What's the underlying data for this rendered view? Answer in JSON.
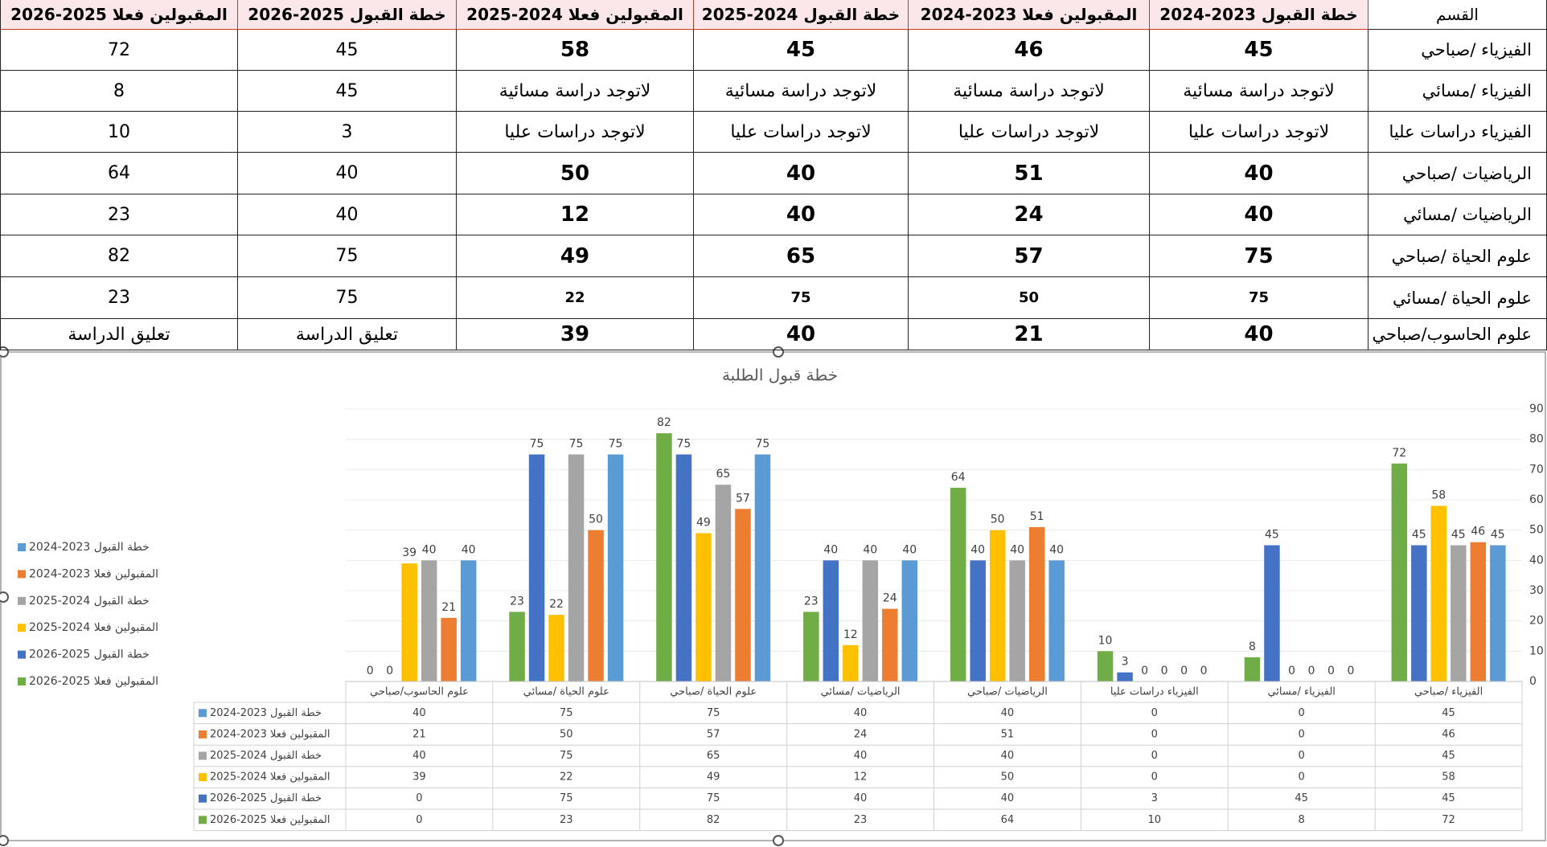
{
  "table": {
    "header": [
      "القسم",
      "خطة القبول 2023-2024",
      "المقبولين فعلا 2023-2024",
      "خطة القبول 2024-2025",
      "المقبولين فعلا 2024-2025",
      "خطة القبول 2025-2026",
      "المقبولين فعلا 2025-2026"
    ],
    "rows": [
      [
        "الفيزياء /صباحي",
        45,
        46,
        45,
        58,
        45,
        72
      ],
      [
        "الفيزياء /مسائي",
        "لاتوجد دراسة مسائية",
        "لاتوجد دراسة مسائية",
        "لاتوجد دراسة مسائية",
        "لاتوجد دراسة مسائية",
        45,
        8
      ],
      [
        "الفيزياء دراسات عليا",
        "لاتوجد دراسات عليا",
        "لاتوجد دراسات عليا",
        "لاتوجد دراسات عليا",
        "لاتوجد دراسات عليا",
        3,
        10
      ],
      [
        "الرياضيات /صباحي",
        40,
        51,
        40,
        50,
        40,
        64
      ],
      [
        "الرياضيات /مسائي",
        40,
        24,
        40,
        12,
        40,
        23
      ],
      [
        "علوم الحياة /صباحي",
        75,
        57,
        65,
        49,
        75,
        82
      ],
      [
        "علوم الحياة /مسائي",
        75,
        50,
        75,
        22,
        75,
        23
      ],
      [
        "علوم الحاسوب/صباحي",
        40,
        21,
        40,
        39,
        "تعليق الدراسة",
        "تعليق الدراسة"
      ]
    ]
  },
  "chart_data": {
    "type": "bar",
    "title": "خطة قبول الطلبة",
    "categories": [
      "الفيزياء /صباحي",
      "الفيزياء /مسائي",
      "الفيزياء دراسات عليا",
      "الرياضيات /صباحي",
      "الرياضيات /مسائي",
      "علوم الحياة /صباحي",
      "علوم الحياة /مسائي",
      "علوم الحاسوب/صباحي"
    ],
    "series": [
      {
        "name": "خطة القبول 2023-2024",
        "color": "#5b9bd5",
        "values": [
          45,
          0,
          0,
          40,
          40,
          75,
          75,
          40
        ]
      },
      {
        "name": "المقبولين فعلا 2023-2024",
        "color": "#ed7d31",
        "values": [
          46,
          0,
          0,
          51,
          24,
          57,
          50,
          21
        ]
      },
      {
        "name": "خطة القبول 2024-2025",
        "color": "#a5a5a5",
        "values": [
          45,
          0,
          0,
          40,
          40,
          65,
          75,
          40
        ]
      },
      {
        "name": "المقبولين فعلا 2024-2025",
        "color": "#ffc000",
        "values": [
          58,
          0,
          0,
          50,
          12,
          49,
          22,
          39
        ]
      },
      {
        "name": "خطة القبول 2025-2026",
        "color": "#4472c4",
        "values": [
          45,
          45,
          3,
          40,
          40,
          75,
          75,
          0
        ]
      },
      {
        "name": "المقبولين فعلا 2025-2026",
        "color": "#70ad47",
        "values": [
          72,
          8,
          10,
          64,
          23,
          82,
          23,
          0
        ]
      }
    ],
    "ylim": [
      0,
      90
    ],
    "yticks": [
      0,
      10,
      20,
      30,
      40,
      50,
      60,
      70,
      80,
      90
    ],
    "grid": true,
    "legend": "left",
    "data_table": true
  }
}
